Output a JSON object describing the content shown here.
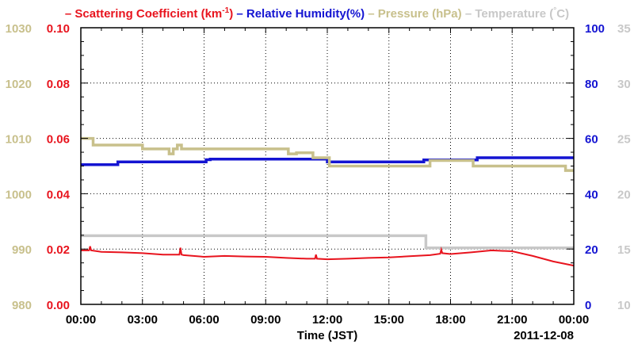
{
  "chart_data": {
    "type": "line",
    "legend": {
      "placement": "top",
      "entries": [
        {
          "text": "Scattering Coefficient (km",
          "sup": "-1",
          "tail": ")",
          "color": "#e8141e"
        },
        {
          "text": "Relative Humidity(%)",
          "color": "#1414d2"
        },
        {
          "text": "Pressure (hPa)",
          "color": "#c8c08c"
        },
        {
          "text": "Temperature (",
          "sup": "°",
          "tail": "C)",
          "color": "#c8c8c8"
        }
      ]
    },
    "xlabel": "Time (JST)",
    "date_label": "2011-12-08",
    "x_unit": "hours",
    "xlim": [
      0,
      24
    ],
    "x_ticks": [
      {
        "value": 0,
        "label": "00:00"
      },
      {
        "value": 3,
        "label": "03:00"
      },
      {
        "value": 6,
        "label": "06:00"
      },
      {
        "value": 9,
        "label": "09:00"
      },
      {
        "value": 12,
        "label": "12:00"
      },
      {
        "value": 15,
        "label": "15:00"
      },
      {
        "value": 18,
        "label": "18:00"
      },
      {
        "value": 21,
        "label": "21:00"
      },
      {
        "value": 24,
        "label": "00:00"
      }
    ],
    "grid": true,
    "axes": {
      "pressure": {
        "side": "left-outer",
        "color": "#c8c08c",
        "ylim": [
          980,
          1030
        ],
        "ticks": [
          "980",
          "990",
          "1000",
          "1010",
          "1020",
          "1030"
        ]
      },
      "scattering": {
        "side": "left",
        "color": "#e8141e",
        "ylim": [
          0,
          0.1
        ],
        "ticks": [
          "0.00",
          "0.02",
          "0.04",
          "0.06",
          "0.08",
          "0.10"
        ]
      },
      "humidity": {
        "side": "right",
        "color": "#1414d2",
        "ylim": [
          0,
          100
        ],
        "ticks": [
          "0",
          "20",
          "40",
          "60",
          "80",
          "100"
        ]
      },
      "temperature": {
        "side": "right-outer",
        "color": "#c8c8c8",
        "ylim": [
          10,
          35
        ],
        "ticks": [
          "10",
          "15",
          "20",
          "25",
          "30",
          "35"
        ]
      }
    },
    "series": [
      {
        "name": "Relative Humidity(%)",
        "axis": "humidity",
        "color": "#1414d2",
        "style": "step",
        "x": [
          0,
          1.8,
          1.8,
          6.1,
          6.1,
          6.3,
          6.3,
          12,
          12,
          16.7,
          16.7,
          19.3,
          19.3,
          24
        ],
        "y": [
          50.5,
          50.5,
          51.5,
          51.5,
          52.3,
          52.3,
          52.5,
          52.5,
          51.5,
          51.5,
          52.2,
          52.2,
          53,
          53
        ]
      },
      {
        "name": "Pressure (hPa)",
        "axis": "pressure",
        "color": "#c8c08c",
        "style": "step",
        "x": [
          0,
          0.6,
          0.6,
          3.0,
          3.0,
          4.3,
          4.3,
          4.5,
          4.5,
          4.7,
          4.7,
          4.9,
          4.9,
          10.1,
          10.1,
          10.5,
          10.5,
          11.3,
          11.3,
          12.1,
          12.1,
          17.0,
          17.0,
          19.1,
          19.1,
          23.6,
          23.6,
          24.0
        ],
        "y": [
          1010,
          1010,
          1008.8,
          1008.8,
          1008.1,
          1008.1,
          1007.2,
          1007.2,
          1008.1,
          1008.1,
          1008.8,
          1008.8,
          1008.1,
          1008.1,
          1007.2,
          1007.2,
          1007.4,
          1007.4,
          1006.5,
          1006.5,
          1005,
          1005,
          1006,
          1006,
          1005,
          1005,
          1004.2,
          1004.2
        ]
      },
      {
        "name": "Temperature (°C)",
        "axis": "temperature",
        "color": "#c8c8c8",
        "style": "step",
        "x": [
          0,
          16.8,
          16.8,
          24
        ],
        "y": [
          16.2,
          16.2,
          15.1,
          15.1
        ]
      },
      {
        "name": "Scattering Coefficient (km-1)",
        "axis": "scattering",
        "color": "#e8141e",
        "style": "line",
        "x": [
          0,
          0.4,
          0.45,
          0.5,
          1,
          2,
          3,
          4,
          4.8,
          4.85,
          4.9,
          5,
          6,
          7,
          8,
          9,
          10,
          11,
          11.4,
          11.45,
          11.5,
          12,
          13,
          14,
          15,
          16,
          17,
          17.5,
          17.55,
          17.6,
          18,
          19,
          20,
          21,
          22,
          23,
          24
        ],
        "y": [
          0.0195,
          0.0195,
          0.021,
          0.0195,
          0.019,
          0.0188,
          0.0185,
          0.018,
          0.018,
          0.0205,
          0.018,
          0.0178,
          0.0172,
          0.0175,
          0.0173,
          0.0172,
          0.0168,
          0.0165,
          0.0165,
          0.018,
          0.0165,
          0.0163,
          0.0165,
          0.0168,
          0.017,
          0.0174,
          0.0178,
          0.0183,
          0.0198,
          0.0185,
          0.0182,
          0.0188,
          0.0195,
          0.0192,
          0.0175,
          0.0155,
          0.014
        ]
      }
    ]
  }
}
